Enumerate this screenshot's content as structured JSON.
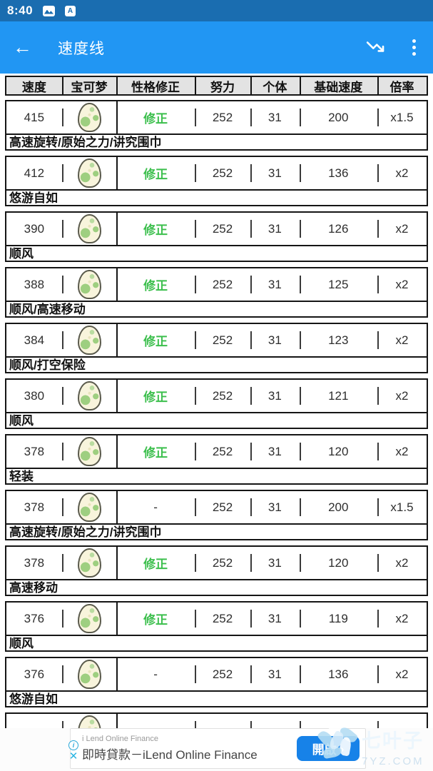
{
  "status_bar": {
    "time": "8:40",
    "icons": [
      "screenshot-icon",
      "letter-a-icon"
    ]
  },
  "app_bar": {
    "title": "速度线",
    "back_label": "←",
    "icons": [
      "trending-down-icon",
      "overflow-menu-icon"
    ]
  },
  "table": {
    "headers": [
      "速度",
      "宝可梦",
      "性格修正",
      "努力",
      "个体",
      "基础速度",
      "倍率"
    ],
    "pokemon_icon": "egg-icon",
    "nature_positive_color": "#3cbf4d",
    "rows": [
      {
        "speed": "415",
        "nature": "修正",
        "ev": "252",
        "iv": "31",
        "base": "200",
        "mult": "x1.5",
        "note": "高速旋转/原始之力/讲究围巾"
      },
      {
        "speed": "412",
        "nature": "修正",
        "ev": "252",
        "iv": "31",
        "base": "136",
        "mult": "x2",
        "note": "悠游自如"
      },
      {
        "speed": "390",
        "nature": "修正",
        "ev": "252",
        "iv": "31",
        "base": "126",
        "mult": "x2",
        "note": "顺风"
      },
      {
        "speed": "388",
        "nature": "修正",
        "ev": "252",
        "iv": "31",
        "base": "125",
        "mult": "x2",
        "note": "顺风/高速移动"
      },
      {
        "speed": "384",
        "nature": "修正",
        "ev": "252",
        "iv": "31",
        "base": "123",
        "mult": "x2",
        "note": "顺风/打空保险"
      },
      {
        "speed": "380",
        "nature": "修正",
        "ev": "252",
        "iv": "31",
        "base": "121",
        "mult": "x2",
        "note": "顺风"
      },
      {
        "speed": "378",
        "nature": "修正",
        "ev": "252",
        "iv": "31",
        "base": "120",
        "mult": "x2",
        "note": "轻装"
      },
      {
        "speed": "378",
        "nature": "-",
        "ev": "252",
        "iv": "31",
        "base": "200",
        "mult": "x1.5",
        "note": "高速旋转/原始之力/讲究围巾"
      },
      {
        "speed": "378",
        "nature": "修正",
        "ev": "252",
        "iv": "31",
        "base": "120",
        "mult": "x2",
        "note": "高速移动"
      },
      {
        "speed": "376",
        "nature": "修正",
        "ev": "252",
        "iv": "31",
        "base": "119",
        "mult": "x2",
        "note": "顺风"
      },
      {
        "speed": "376",
        "nature": "-",
        "ev": "252",
        "iv": "31",
        "base": "136",
        "mult": "x2",
        "note": "悠游自如"
      }
    ]
  },
  "ad": {
    "advertiser": "i Lend Online Finance",
    "headline": "即時貸款－iLend Online Finance",
    "cta_label": "開啟",
    "cta_chevron": "›",
    "info_label": "i",
    "close_label": "✕"
  },
  "watermark": {
    "name": "七叶子",
    "domain": "7YZ.COM"
  },
  "colors": {
    "status_bar": "#1a6db0",
    "app_bar": "#2196f3",
    "header_bg": "#e3e3e3",
    "nature_green": "#3cbf4d",
    "cta_blue": "#1782e8"
  }
}
